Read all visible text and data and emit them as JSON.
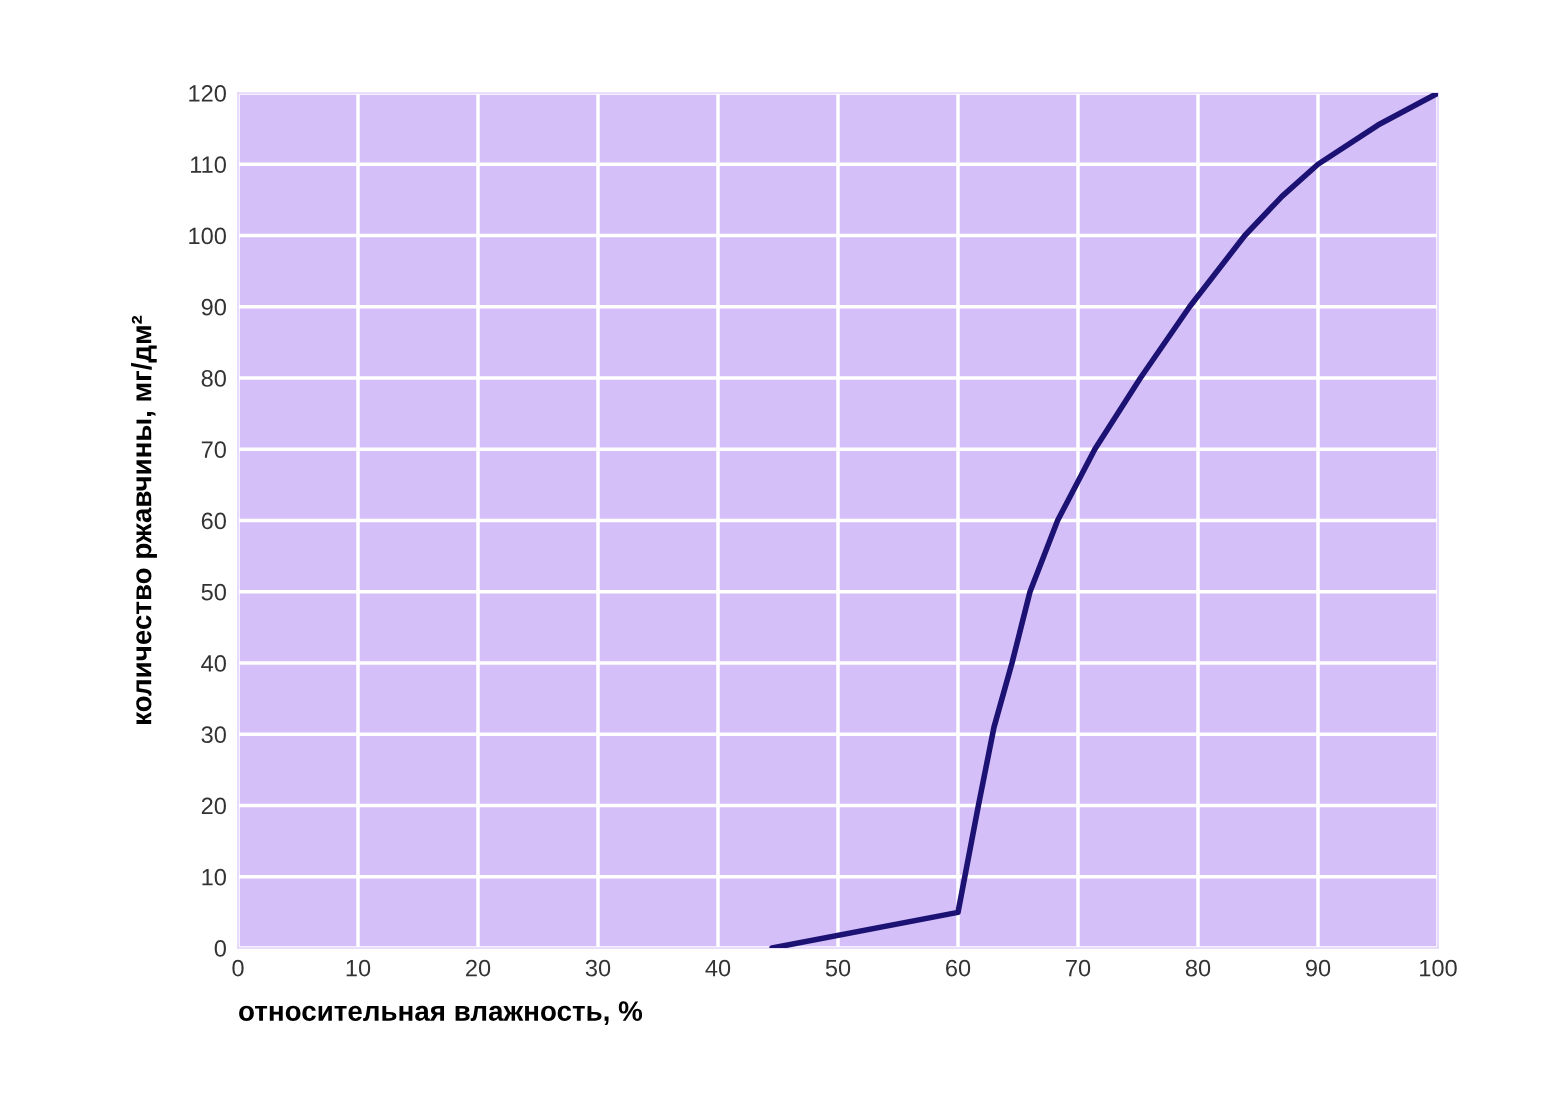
{
  "chart_data": {
    "type": "line",
    "xlabel": "относительная влажность, %",
    "ylabel": "количество ржавчины, мг/дм²",
    "series": [
      {
        "color": "#1c1273",
        "x": [
          44.5,
          60,
          61.7,
          63,
          64.5,
          66,
          68.3,
          71.4,
          75.2,
          79.3,
          83.9,
          87,
          90,
          95,
          100
        ],
        "values": [
          0,
          5,
          20,
          31,
          40,
          50,
          60,
          70,
          80,
          90,
          100,
          105.5,
          110,
          115.5,
          120
        ]
      }
    ],
    "xlim": [
      0,
      100
    ],
    "xticks": [
      0,
      10,
      20,
      30,
      40,
      50,
      60,
      70,
      80,
      90,
      100
    ],
    "ylim": [
      0,
      120
    ],
    "yticks": [
      0,
      10,
      20,
      30,
      40,
      50,
      60,
      70,
      80,
      90,
      100,
      110,
      120
    ],
    "grid": true,
    "marker": "none",
    "line_style": "solid"
  }
}
